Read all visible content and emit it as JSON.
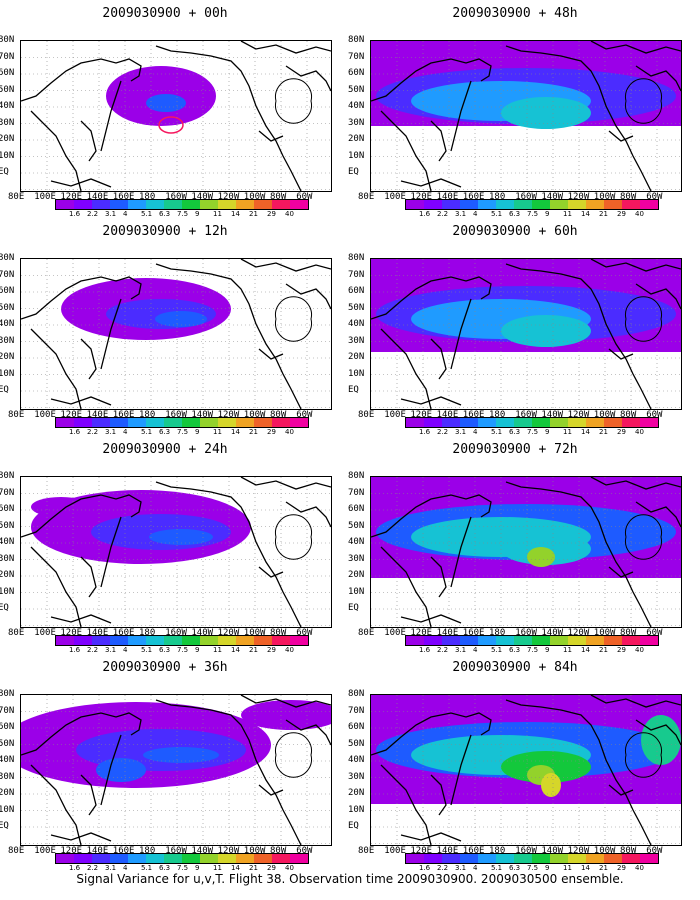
{
  "panels": [
    {
      "title": "2009030900 + 00h",
      "intensity": 0
    },
    {
      "title": "2009030900 + 48h",
      "intensity": 4
    },
    {
      "title": "2009030900 + 12h",
      "intensity": 1
    },
    {
      "title": "2009030900 + 60h",
      "intensity": 5
    },
    {
      "title": "2009030900 + 24h",
      "intensity": 2
    },
    {
      "title": "2009030900 + 72h",
      "intensity": 6
    },
    {
      "title": "2009030900 + 36h",
      "intensity": 3
    },
    {
      "title": "2009030900 + 84h",
      "intensity": 7
    }
  ],
  "lat_labels": [
    "80N",
    "70N",
    "60N",
    "50N",
    "40N",
    "30N",
    "20N",
    "10N",
    "EQ"
  ],
  "lon_labels": [
    "80E",
    "100E",
    "120E",
    "140E",
    "160E",
    "180",
    "160W",
    "140W",
    "120W",
    "100W",
    "80W",
    "60W"
  ],
  "colorbar": {
    "labels": [
      "1.6",
      "2.2",
      "3.1",
      "4",
      "5.1",
      "6.3",
      "7.5",
      "9",
      "11",
      "14",
      "21",
      "29",
      "40"
    ],
    "colors": [
      "#9b00e8",
      "#7f00ff",
      "#4b2cff",
      "#1e5bff",
      "#1f9bff",
      "#16c2d4",
      "#17ca8e",
      "#13c83c",
      "#93d22b",
      "#d5d62a",
      "#f0a323",
      "#ef6228",
      "#f5175e",
      "#f000a0"
    ]
  },
  "footer": "Signal Variance for u,v,T. Flight 38. Observation time 2009030900. 2009030500 ensemble."
}
